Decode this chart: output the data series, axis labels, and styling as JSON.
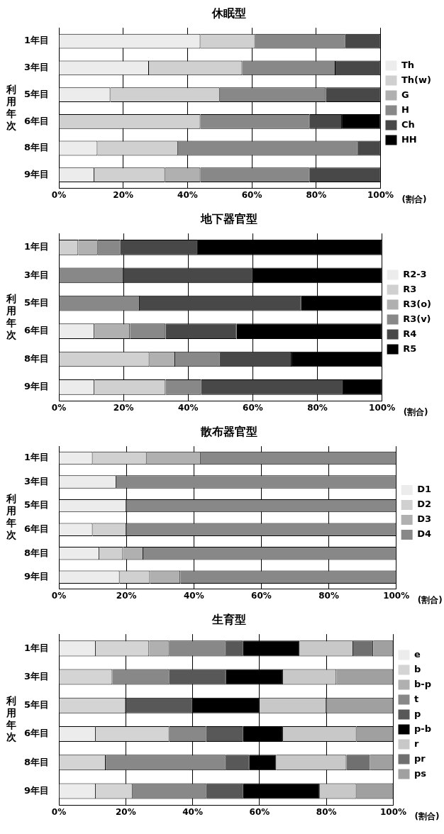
{
  "chart_data": [
    {
      "type": "bar",
      "orientation": "horizontal",
      "stacked": true,
      "title": "休眠型",
      "xlabel": "(割合)",
      "ylabel": "利用年次",
      "legend": "right",
      "grid": "x",
      "categories": [
        "1年目",
        "3年目",
        "5年目",
        "6年目",
        "8年目",
        "9年目"
      ],
      "xlim": [
        0,
        100
      ],
      "xticks": [
        {
          "value": 0,
          "label": "0%"
        },
        {
          "value": 20,
          "label": "20%"
        },
        {
          "value": 40,
          "label": "40%"
        },
        {
          "value": 60,
          "label": "60%"
        },
        {
          "value": 80,
          "label": "80%"
        },
        {
          "value": 100,
          "label": "100%"
        }
      ],
      "series": [
        {
          "name": "Th",
          "color": "#ececec",
          "values": [
            44,
            28,
            16,
            0,
            12,
            11
          ]
        },
        {
          "name": "Th(w)",
          "color": "#d0d0d0",
          "values": [
            17,
            29,
            34,
            44,
            25,
            22
          ]
        },
        {
          "name": "G",
          "color": "#b0b0b0",
          "values": [
            0,
            0,
            0,
            0,
            0,
            11
          ]
        },
        {
          "name": "H",
          "color": "#888888",
          "values": [
            28,
            29,
            33,
            34,
            56,
            34
          ]
        },
        {
          "name": "Ch",
          "color": "#484848",
          "values": [
            11,
            14,
            17,
            10,
            7,
            22
          ]
        },
        {
          "name": "HH",
          "color": "#000000",
          "values": [
            0,
            0,
            0,
            12,
            0,
            0
          ]
        }
      ]
    },
    {
      "type": "bar",
      "orientation": "horizontal",
      "stacked": true,
      "title": "地下器官型",
      "xlabel": "(割合)",
      "ylabel": "利用年次",
      "legend": "right",
      "grid": "x",
      "categories": [
        "1年目",
        "3年目",
        "5年目",
        "6年目",
        "8年目",
        "9年目"
      ],
      "xlim": [
        0,
        100
      ],
      "xticks": [
        {
          "value": 0,
          "label": "0%"
        },
        {
          "value": 20,
          "label": "20%"
        },
        {
          "value": 40,
          "label": "40%"
        },
        {
          "value": 60,
          "label": "60%"
        },
        {
          "value": 80,
          "label": "80%"
        },
        {
          "value": 100,
          "label": "100%"
        }
      ],
      "series": [
        {
          "name": "R2-3",
          "color": "#ececec",
          "values": [
            0,
            0,
            0,
            11,
            0,
            11
          ]
        },
        {
          "name": "R3",
          "color": "#d0d0d0",
          "values": [
            6,
            0,
            0,
            0,
            28,
            22
          ]
        },
        {
          "name": "R3(o)",
          "color": "#b0b0b0",
          "values": [
            6,
            0,
            0,
            11,
            8,
            0
          ]
        },
        {
          "name": "R3(v)",
          "color": "#888888",
          "values": [
            7,
            20,
            25,
            11,
            14,
            11
          ]
        },
        {
          "name": "R4",
          "color": "#484848",
          "values": [
            24,
            40,
            50,
            22,
            22,
            44
          ]
        },
        {
          "name": "R5",
          "color": "#000000",
          "values": [
            57,
            40,
            25,
            45,
            28,
            12
          ]
        }
      ]
    },
    {
      "type": "bar",
      "orientation": "horizontal",
      "stacked": true,
      "title": "散布器官型",
      "xlabel": "(割合)",
      "ylabel": "利用年次",
      "legend": "right",
      "grid": "x",
      "categories": [
        "1年目",
        "3年目",
        "5年目",
        "6年目",
        "8年目",
        "9年目"
      ],
      "xlim": [
        0,
        100
      ],
      "xticks": [
        {
          "value": 0,
          "label": "0%"
        },
        {
          "value": 20,
          "label": "20%"
        },
        {
          "value": 40,
          "label": "40%"
        },
        {
          "value": 60,
          "label": "60%"
        },
        {
          "value": 80,
          "label": "80%"
        },
        {
          "value": 100,
          "label": "100%"
        }
      ],
      "series": [
        {
          "name": "D1",
          "color": "#ececec",
          "values": [
            10,
            17,
            20,
            10,
            12,
            18
          ]
        },
        {
          "name": "D2",
          "color": "#d0d0d0",
          "values": [
            16,
            0,
            0,
            10,
            7,
            9
          ]
        },
        {
          "name": "D3",
          "color": "#b0b0b0",
          "values": [
            16,
            0,
            0,
            0,
            6,
            9
          ]
        },
        {
          "name": "D4",
          "color": "#888888",
          "values": [
            58,
            83,
            80,
            80,
            75,
            64
          ]
        }
      ]
    },
    {
      "type": "bar",
      "orientation": "horizontal",
      "stacked": true,
      "title": "生育型",
      "xlabel": "(割合)",
      "ylabel": "利用年次",
      "legend": "right",
      "grid": "x",
      "categories": [
        "1年目",
        "3年目",
        "5年目",
        "6年目",
        "8年目",
        "9年目"
      ],
      "xlim": [
        0,
        100
      ],
      "xticks": [
        {
          "value": 0,
          "label": "0%"
        },
        {
          "value": 20,
          "label": "20%"
        },
        {
          "value": 40,
          "label": "40%"
        },
        {
          "value": 60,
          "label": "60%"
        },
        {
          "value": 80,
          "label": "80%"
        },
        {
          "value": 100,
          "label": "100%"
        }
      ],
      "series": [
        {
          "name": "e",
          "color": "#ececec",
          "values": [
            11,
            0,
            0,
            11,
            0,
            11
          ]
        },
        {
          "name": "b",
          "color": "#d4d4d4",
          "values": [
            16,
            16,
            20,
            22,
            14,
            11
          ]
        },
        {
          "name": "b-p",
          "color": "#b0b0b0",
          "values": [
            6,
            0,
            0,
            0,
            0,
            0
          ]
        },
        {
          "name": "t",
          "color": "#888888",
          "values": [
            17,
            17,
            0,
            11,
            36,
            22
          ]
        },
        {
          "name": "p",
          "color": "#585858",
          "values": [
            5,
            17,
            20,
            11,
            7,
            11
          ]
        },
        {
          "name": "p-b",
          "color": "#000000",
          "values": [
            17,
            17,
            20,
            12,
            8,
            23
          ]
        },
        {
          "name": "r",
          "color": "#c8c8c8",
          "values": [
            16,
            16,
            20,
            22,
            21,
            11
          ]
        },
        {
          "name": "pr",
          "color": "#707070",
          "values": [
            6,
            0,
            0,
            0,
            7,
            0
          ]
        },
        {
          "name": "ps",
          "color": "#a0a0a0",
          "values": [
            6,
            17,
            20,
            11,
            7,
            11
          ]
        }
      ]
    }
  ]
}
